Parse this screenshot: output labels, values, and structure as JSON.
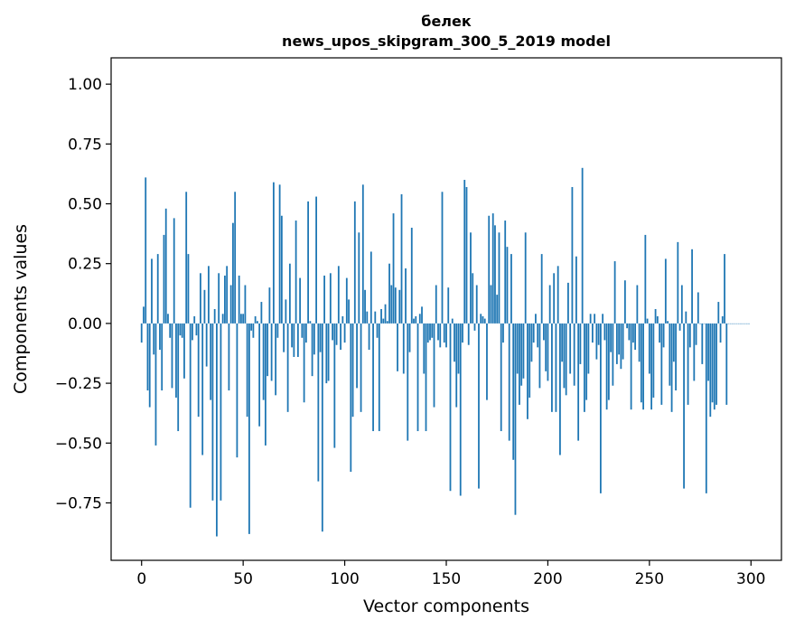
{
  "chart_data": {
    "type": "bar",
    "title_line1": "белек",
    "title_line2": "news_upos_skipgram_300_5_2019 model",
    "xlabel": "Vector components",
    "ylabel": "Components values",
    "xlim": [
      -15,
      315
    ],
    "ylim": [
      -0.99,
      1.11
    ],
    "xticks": [
      0,
      50,
      100,
      150,
      200,
      250,
      300
    ],
    "yticks": [
      1.0,
      0.75,
      0.5,
      0.25,
      0.0,
      -0.25,
      -0.5,
      -0.75
    ],
    "ytick_labels": [
      "1.00",
      "0.75",
      "0.50",
      "0.25",
      "0.00",
      "−0.25",
      "−0.50",
      "−0.75"
    ],
    "bar_color": "#1f77b4",
    "values": [
      -0.08,
      0.07,
      0.61,
      -0.28,
      -0.35,
      0.27,
      -0.13,
      -0.51,
      0.29,
      -0.11,
      -0.28,
      0.37,
      0.48,
      0.04,
      -0.06,
      -0.27,
      0.44,
      -0.31,
      -0.45,
      -0.05,
      -0.06,
      -0.23,
      0.55,
      0.29,
      -0.77,
      -0.07,
      0.03,
      -0.05,
      -0.39,
      0.21,
      -0.55,
      0.14,
      -0.18,
      0.24,
      -0.32,
      -0.74,
      0.06,
      -0.89,
      0.21,
      -0.74,
      0.04,
      0.2,
      0.24,
      -0.28,
      0.16,
      0.42,
      0.55,
      -0.56,
      0.2,
      0.04,
      0.04,
      0.16,
      -0.39,
      -0.88,
      -0.03,
      -0.06,
      0.03,
      0.01,
      -0.43,
      0.09,
      -0.32,
      -0.51,
      -0.22,
      0.15,
      -0.24,
      0.59,
      -0.3,
      -0.06,
      0.58,
      0.45,
      -0.12,
      0.1,
      -0.37,
      0.25,
      -0.1,
      -0.14,
      0.43,
      -0.14,
      0.19,
      -0.06,
      -0.33,
      -0.08,
      0.51,
      0.01,
      -0.22,
      -0.13,
      0.53,
      -0.66,
      -0.12,
      -0.87,
      0.2,
      -0.25,
      -0.24,
      0.21,
      -0.07,
      -0.52,
      -0.09,
      0.24,
      -0.11,
      0.03,
      -0.08,
      0.19,
      0.1,
      -0.62,
      -0.39,
      0.51,
      -0.27,
      0.38,
      -0.37,
      0.58,
      0.14,
      0.05,
      -0.11,
      0.3,
      -0.45,
      0.05,
      -0.06,
      -0.45,
      0.06,
      0.02,
      0.08,
      0.01,
      0.25,
      0.16,
      0.46,
      0.15,
      -0.2,
      0.14,
      0.54,
      -0.21,
      0.23,
      -0.49,
      -0.12,
      0.4,
      0.02,
      0.03,
      -0.45,
      0.04,
      0.07,
      -0.21,
      -0.45,
      -0.08,
      -0.07,
      -0.06,
      -0.35,
      0.16,
      -0.07,
      -0.1,
      0.55,
      -0.08,
      -0.1,
      0.15,
      -0.7,
      0.02,
      -0.16,
      -0.35,
      -0.21,
      -0.72,
      -0.08,
      0.6,
      0.57,
      -0.09,
      0.38,
      0.21,
      -0.03,
      0.16,
      -0.69,
      0.04,
      0.03,
      0.02,
      -0.32,
      0.45,
      0.16,
      0.46,
      0.41,
      0.12,
      0.38,
      -0.45,
      -0.08,
      0.43,
      0.32,
      -0.49,
      0.29,
      -0.57,
      -0.8,
      -0.21,
      -0.34,
      -0.26,
      -0.23,
      0.38,
      -0.4,
      -0.31,
      -0.16,
      -0.08,
      0.04,
      -0.1,
      -0.27,
      0.29,
      -0.07,
      -0.2,
      -0.24,
      0.16,
      -0.37,
      0.21,
      -0.37,
      0.24,
      -0.55,
      -0.16,
      -0.27,
      -0.3,
      0.17,
      -0.21,
      0.57,
      -0.26,
      0.28,
      -0.49,
      -0.17,
      0.65,
      -0.37,
      -0.32,
      -0.21,
      0.04,
      -0.08,
      0.04,
      -0.15,
      -0.09,
      -0.71,
      0.04,
      -0.07,
      -0.36,
      -0.32,
      -0.12,
      -0.26,
      0.26,
      -0.17,
      -0.13,
      -0.19,
      -0.15,
      0.18,
      -0.02,
      -0.07,
      -0.36,
      -0.08,
      -0.11,
      0.16,
      -0.16,
      -0.33,
      -0.36,
      0.37,
      0.02,
      -0.21,
      -0.36,
      -0.31,
      0.06,
      0.03,
      -0.08,
      -0.34,
      -0.1,
      0.27,
      0.01,
      -0.26,
      -0.37,
      -0.16,
      -0.28,
      0.34,
      -0.03,
      0.16,
      -0.69,
      0.05,
      -0.34,
      -0.1,
      0.31,
      -0.24,
      -0.09,
      0.13,
      0.0,
      -0.17,
      0.0,
      -0.71,
      -0.24,
      -0.39,
      -0.33,
      -0.36,
      -0.34,
      0.09,
      -0.08,
      0.03,
      0.29,
      -0.34,
      0.0,
      0.0,
      0.0,
      0.0,
      0.0,
      0.0,
      0.0,
      0.0,
      0.0,
      0.0,
      0.0
    ]
  }
}
